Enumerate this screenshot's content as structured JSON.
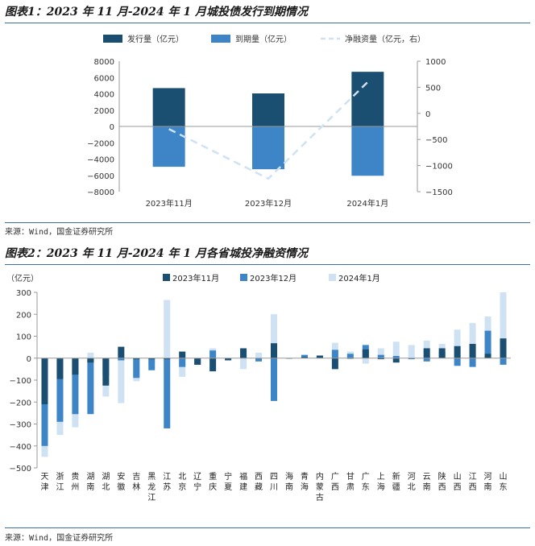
{
  "colors": {
    "c_2023_11": "#1b4f72",
    "c_2023_12": "#3d85c6",
    "c_2024_01": "#cfe2f3",
    "rule": "#3a6ea5"
  },
  "figure1": {
    "title": "图表1：2023 年 11 月-2024 年 1 月城投债发行到期情况",
    "source": "来源：Wind，国金证券研究所"
  },
  "figure2": {
    "title": "图表2：2023 年 11 月-2024 年 1 月各省城投净融资情况",
    "source": "来源：Wind，国金证券研究所"
  },
  "chart_data": [
    {
      "type": "bar",
      "title": "",
      "categories": [
        "2023年11月",
        "2023年12月",
        "2024年1月"
      ],
      "series": [
        {
          "name": "发行量（亿元）",
          "kind": "bar",
          "axis": "left",
          "values": [
            4700,
            4050,
            6700
          ]
        },
        {
          "name": "到期量（亿元）",
          "kind": "bar",
          "axis": "left",
          "values": [
            -4950,
            -5250,
            -6050
          ]
        },
        {
          "name": "净融资量（亿元，右）",
          "kind": "line",
          "style": "dashed",
          "axis": "right",
          "values": [
            -300,
            -1250,
            600
          ]
        }
      ],
      "ylim_left": [
        -8000,
        8000
      ],
      "yticks_left": [
        8000,
        6000,
        4000,
        2000,
        0,
        -2000,
        -4000,
        -6000,
        -8000
      ],
      "ylim_right": [
        -1500,
        1000
      ],
      "yticks_right": [
        1000,
        500,
        0,
        -500,
        -1000,
        -1500
      ],
      "legend": "top",
      "grid": false
    },
    {
      "type": "bar",
      "title": "",
      "ylabel": "（亿元）",
      "categories": [
        [
          "天",
          "津"
        ],
        [
          "浙",
          "江"
        ],
        [
          "贵",
          "州"
        ],
        [
          "湖",
          "南"
        ],
        [
          "湖",
          "北"
        ],
        [
          "安",
          "徽"
        ],
        [
          "吉",
          "林"
        ],
        [
          "黑",
          "龙",
          "江"
        ],
        [
          "江",
          "苏"
        ],
        [
          "北",
          "京"
        ],
        [
          "辽",
          "宁"
        ],
        [
          "重",
          "庆"
        ],
        [
          "宁",
          "夏"
        ],
        [
          "福",
          "建"
        ],
        [
          "西",
          "藏"
        ],
        [
          "四",
          "川"
        ],
        [
          "海",
          "南"
        ],
        [
          "青",
          "海"
        ],
        [
          "内",
          "蒙",
          "古"
        ],
        [
          "广",
          "西"
        ],
        [
          "甘",
          "肃"
        ],
        [
          "广",
          "东"
        ],
        [
          "上",
          "海"
        ],
        [
          "新",
          "疆"
        ],
        [
          "河",
          "北"
        ],
        [
          "云",
          "南"
        ],
        [
          "陕",
          "西"
        ],
        [
          "山",
          "西"
        ],
        [
          "江",
          "西"
        ],
        [
          "河",
          "南"
        ],
        [
          "山",
          "东"
        ]
      ],
      "series": [
        {
          "name": "2023年11月",
          "values": [
            -210,
            -95,
            -75,
            -20,
            -125,
            52,
            -5,
            -5,
            -5,
            30,
            -30,
            -60,
            -10,
            45,
            0,
            68,
            0,
            5,
            12,
            -50,
            -2,
            40,
            -5,
            -20,
            0,
            45,
            45,
            55,
            65,
            20,
            90
          ]
        },
        {
          "name": "2023年12月",
          "values": [
            -400,
            -290,
            -255,
            -255,
            -80,
            -10,
            -90,
            -55,
            -320,
            -40,
            -30,
            35,
            -5,
            15,
            -15,
            -195,
            -2,
            15,
            8,
            38,
            20,
            60,
            15,
            10,
            -5,
            -15,
            30,
            -35,
            -40,
            125,
            -30
          ]
        },
        {
          "name": "2024年1月",
          "values": [
            -450,
            -350,
            -315,
            25,
            -175,
            -205,
            -105,
            -35,
            265,
            -85,
            0,
            45,
            0,
            -50,
            25,
            200,
            0,
            0,
            5,
            70,
            30,
            -25,
            45,
            75,
            60,
            80,
            65,
            130,
            160,
            190,
            300
          ]
        }
      ],
      "ylim": [
        -500,
        300
      ],
      "yticks": [
        300,
        200,
        100,
        0,
        -100,
        -200,
        -300,
        -400,
        -500
      ],
      "legend": "top",
      "grid": false
    }
  ]
}
